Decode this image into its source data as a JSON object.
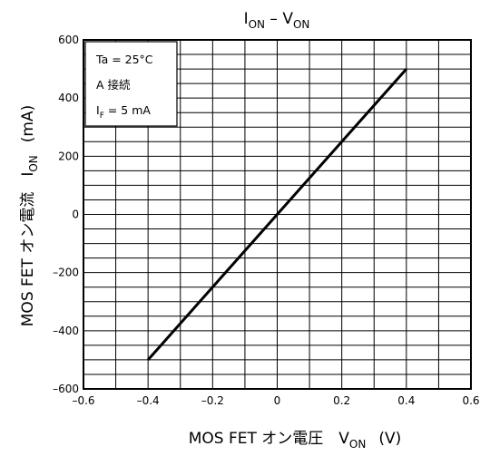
{
  "chart_data": {
    "type": "line",
    "title_main": "I",
    "title_sub1": "ON",
    "title_dash": " – V",
    "title_sub2": "ON",
    "xlabel_main": "MOS FET オン電圧　V",
    "xlabel_sub": "ON",
    "xlabel_unit": "(V)",
    "ylabel_main": "MOS FET オン電流　I",
    "ylabel_sub": "ON",
    "ylabel_unit": "(mA)",
    "xlim": [
      -0.6,
      0.6
    ],
    "ylim": [
      -600,
      600
    ],
    "x_minor_step": 0.1,
    "y_minor_step": 50,
    "x_ticks": [
      -0.6,
      -0.4,
      -0.2,
      0,
      0.2,
      0.4,
      0.6
    ],
    "x_tick_labels": [
      "–0.6",
      "–0.4",
      "–0.2",
      "0",
      "0.2",
      "0.4",
      "0.6"
    ],
    "y_ticks": [
      600,
      400,
      200,
      0,
      -200,
      -400,
      -600
    ],
    "y_tick_labels": [
      "600",
      "400",
      "200",
      "0",
      "–200",
      "–400",
      "–600"
    ],
    "grid": true,
    "series": [
      {
        "x": [
          -0.4,
          0.4
        ],
        "y": [
          -500,
          500
        ]
      }
    ],
    "conditions": {
      "line1": "Ta = 25°C",
      "line2": "A 接続",
      "line3_main": "I",
      "line3_sub": "F",
      "line3_rest": " = 5 mA"
    }
  }
}
